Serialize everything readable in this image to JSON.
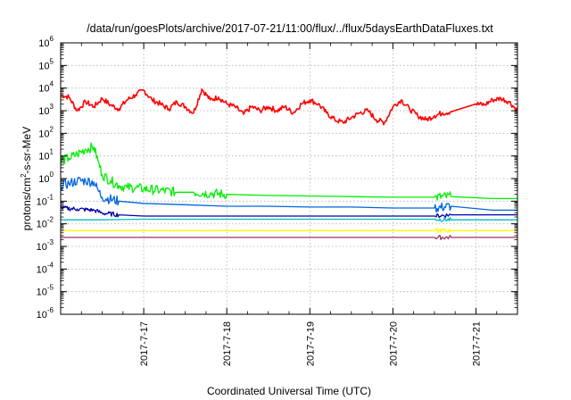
{
  "chart_data": {
    "type": "line",
    "title": "/data/run/goesPlots/archive/2017-07-21/11:00/flux/../flux/5daysEarthDataFluxes.txt",
    "xlabel": "Coordinated Universal Time (UTC)",
    "ylabel": {
      "pre": "protons/cm",
      "sup": "2",
      "post": "-s-sr-MeV"
    },
    "y_scale": "log",
    "ylim_exponent": [
      -6,
      6
    ],
    "y_tick_labels": [
      {
        "base": "10",
        "exp": "-6"
      },
      {
        "base": "10",
        "exp": "-5"
      },
      {
        "base": "10",
        "exp": "-4"
      },
      {
        "base": "10",
        "exp": "-3"
      },
      {
        "base": "10",
        "exp": "-2"
      },
      {
        "base": "10",
        "exp": "-1"
      },
      {
        "base": "10",
        "exp": "0"
      },
      {
        "base": "10",
        "exp": "1"
      },
      {
        "base": "10",
        "exp": "2"
      },
      {
        "base": "10",
        "exp": "3"
      },
      {
        "base": "10",
        "exp": "4"
      },
      {
        "base": "10",
        "exp": "5"
      },
      {
        "base": "10",
        "exp": "6"
      }
    ],
    "xlim_days": [
      2017.0716,
      2017.0721
    ],
    "x_ticks": [
      {
        "label": "2017-7-17",
        "day": 17
      },
      {
        "label": "2017-7-18",
        "day": 18
      },
      {
        "label": "2017-7-19",
        "day": 19
      },
      {
        "label": "2017-7-20",
        "day": 20
      },
      {
        "label": "2017-7-21",
        "day": 21
      }
    ],
    "x_range_day": [
      16.0,
      21.5
    ],
    "grid": true,
    "legend": "none",
    "series": [
      {
        "color": "#ff0000",
        "points": [
          [
            16.0,
            5000
          ],
          [
            16.1,
            4000
          ],
          [
            16.2,
            1000
          ],
          [
            16.3,
            2500
          ],
          [
            16.4,
            1500
          ],
          [
            16.5,
            3500
          ],
          [
            16.6,
            1800
          ],
          [
            16.7,
            1200
          ],
          [
            16.8,
            3000
          ],
          [
            16.9,
            5000
          ],
          [
            17.0,
            8000
          ],
          [
            17.1,
            3000
          ],
          [
            17.2,
            2000
          ],
          [
            17.3,
            1200
          ],
          [
            17.4,
            2500
          ],
          [
            17.5,
            1500
          ],
          [
            17.6,
            800
          ],
          [
            17.7,
            9000
          ],
          [
            17.8,
            3000
          ],
          [
            17.9,
            4000
          ],
          [
            18.0,
            2000
          ],
          [
            18.1,
            1500
          ],
          [
            18.2,
            700
          ],
          [
            18.3,
            1500
          ],
          [
            18.4,
            1000
          ],
          [
            18.5,
            1500
          ],
          [
            18.6,
            1000
          ],
          [
            18.7,
            1500
          ],
          [
            18.8,
            800
          ],
          [
            18.9,
            2000
          ],
          [
            19.0,
            3000
          ],
          [
            19.1,
            2000
          ],
          [
            19.2,
            800
          ],
          [
            19.3,
            400
          ],
          [
            19.4,
            300
          ],
          [
            19.5,
            500
          ],
          [
            19.6,
            800
          ],
          [
            19.7,
            1000
          ],
          [
            19.8,
            400
          ],
          [
            19.9,
            300
          ],
          [
            20.0,
            1500
          ],
          [
            20.1,
            3000
          ],
          [
            20.2,
            1200
          ],
          [
            20.3,
            600
          ],
          [
            20.4,
            400
          ],
          [
            20.5,
            600
          ],
          [
            20.6,
            800
          ],
          [
            20.7,
            900
          ],
          [
            21.0,
            2000
          ],
          [
            21.1,
            1800
          ],
          [
            21.2,
            3000
          ],
          [
            21.3,
            3500
          ],
          [
            21.4,
            2500
          ],
          [
            21.5,
            1000
          ]
        ]
      },
      {
        "color": "#00ee00",
        "points": [
          [
            16.0,
            6
          ],
          [
            16.1,
            8
          ],
          [
            16.2,
            12
          ],
          [
            16.3,
            20
          ],
          [
            16.4,
            25
          ],
          [
            16.45,
            6
          ],
          [
            16.5,
            1.5
          ],
          [
            16.6,
            0.8
          ],
          [
            16.7,
            0.5
          ],
          [
            16.8,
            0.4
          ],
          [
            16.9,
            0.4
          ],
          [
            17.0,
            0.35
          ],
          [
            17.2,
            0.3
          ],
          [
            17.4,
            0.25
          ],
          [
            17.6,
            0.25
          ],
          [
            17.8,
            0.22
          ],
          [
            18.0,
            0.2
          ],
          [
            18.5,
            0.18
          ],
          [
            19.0,
            0.17
          ],
          [
            19.5,
            0.16
          ],
          [
            20.0,
            0.15
          ],
          [
            20.5,
            0.15
          ],
          [
            20.7,
            0.16
          ],
          [
            21.2,
            0.13
          ],
          [
            21.5,
            0.13
          ]
        ]
      },
      {
        "color": "#0066dd",
        "points": [
          [
            16.0,
            0.5
          ],
          [
            16.1,
            0.6
          ],
          [
            16.2,
            0.8
          ],
          [
            16.3,
            0.8
          ],
          [
            16.4,
            0.7
          ],
          [
            16.45,
            0.3
          ],
          [
            16.5,
            0.15
          ],
          [
            16.7,
            0.1
          ],
          [
            17.0,
            0.08
          ],
          [
            17.5,
            0.07
          ],
          [
            18.0,
            0.06
          ],
          [
            18.5,
            0.06
          ],
          [
            19.0,
            0.055
          ],
          [
            19.5,
            0.055
          ],
          [
            20.0,
            0.05
          ],
          [
            20.5,
            0.05
          ],
          [
            20.7,
            0.06
          ],
          [
            21.2,
            0.04
          ],
          [
            21.5,
            0.04
          ]
        ]
      },
      {
        "color": "#0000aa",
        "points": [
          [
            16.0,
            0.05
          ],
          [
            16.2,
            0.045
          ],
          [
            16.4,
            0.04
          ],
          [
            16.5,
            0.03
          ],
          [
            16.7,
            0.025
          ],
          [
            17.0,
            0.022
          ],
          [
            17.5,
            0.022
          ],
          [
            18.0,
            0.022
          ],
          [
            18.5,
            0.022
          ],
          [
            19.0,
            0.022
          ],
          [
            19.5,
            0.022
          ],
          [
            20.0,
            0.022
          ],
          [
            20.5,
            0.022
          ],
          [
            20.7,
            0.025
          ],
          [
            21.2,
            0.025
          ],
          [
            21.5,
            0.025
          ]
        ]
      },
      {
        "color": "#00bbbb",
        "points": [
          [
            16.0,
            0.015
          ],
          [
            16.5,
            0.015
          ],
          [
            17.0,
            0.016
          ],
          [
            17.5,
            0.016
          ],
          [
            18.0,
            0.016
          ],
          [
            18.5,
            0.016
          ],
          [
            19.0,
            0.016
          ],
          [
            19.5,
            0.016
          ],
          [
            20.0,
            0.016
          ],
          [
            20.5,
            0.016
          ],
          [
            20.7,
            0.015
          ],
          [
            21.2,
            0.015
          ],
          [
            21.5,
            0.015
          ]
        ]
      },
      {
        "color": "#ffff00",
        "points": [
          [
            16.0,
            0.005
          ],
          [
            16.5,
            0.005
          ],
          [
            17.0,
            0.005
          ],
          [
            17.5,
            0.005
          ],
          [
            18.0,
            0.005
          ],
          [
            18.5,
            0.005
          ],
          [
            19.0,
            0.005
          ],
          [
            19.5,
            0.005
          ],
          [
            20.0,
            0.005
          ],
          [
            20.5,
            0.005
          ],
          [
            20.7,
            0.005
          ],
          [
            21.2,
            0.005
          ],
          [
            21.5,
            0.005
          ]
        ]
      },
      {
        "color": "#993366",
        "points": [
          [
            16.0,
            0.0025
          ],
          [
            16.5,
            0.0025
          ],
          [
            17.0,
            0.0025
          ],
          [
            17.5,
            0.0025
          ],
          [
            18.0,
            0.0025
          ],
          [
            18.5,
            0.0025
          ],
          [
            19.0,
            0.0025
          ],
          [
            19.5,
            0.0025
          ],
          [
            20.0,
            0.0025
          ],
          [
            20.5,
            0.0025
          ],
          [
            20.7,
            0.0025
          ],
          [
            21.2,
            0.0025
          ],
          [
            21.5,
            0.0025
          ]
        ]
      }
    ]
  }
}
